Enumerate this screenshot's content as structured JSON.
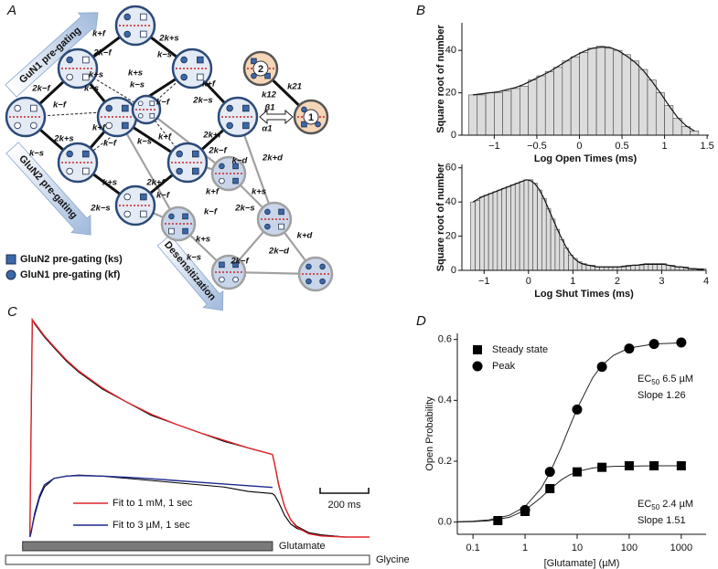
{
  "panel_labels": [
    "A",
    "B",
    "C",
    "D"
  ],
  "diagram": {
    "arrows": [
      "GuN1 pre-gating",
      "GluN2 pre-gating",
      "Desensitization"
    ],
    "legend": [
      "GluN2 pre-gating (ks)",
      "GluN1 pre-gating (kf)"
    ],
    "states": [
      "2",
      "1"
    ],
    "rates": [
      "k+f",
      "2k−f",
      "2k+s",
      "k−s",
      "2k−f",
      "k−f",
      "k+s",
      "k−s",
      "k+s",
      "k−s",
      "2k+s",
      "k−s",
      "k+f",
      "k−f",
      "k+f",
      "2k−s",
      "k−f",
      "k+f",
      "k−s",
      "2k+f",
      "2k−f",
      "k+s",
      "2k−s",
      "2k+f",
      "k−f",
      "k−d",
      "2k+d",
      "k+f",
      "k+s",
      "2k−s",
      "k−f",
      "k+s",
      "k−s",
      "2k−d",
      "k+d",
      "2k−f",
      "k12",
      "β1",
      "α1",
      "k21"
    ]
  },
  "chart_data": [
    {
      "type": "histogram",
      "xlabel": "Log Open Times (ms)",
      "ylabel": "Square root of number",
      "color": "#dcdcdc",
      "bins": [
        -1.3,
        -1.2,
        -1.1,
        -1.0,
        -0.9,
        -0.8,
        -0.7,
        -0.6,
        -0.5,
        -0.4,
        -0.3,
        -0.2,
        -0.1,
        0.0,
        0.1,
        0.2,
        0.3,
        0.4,
        0.5,
        0.6,
        0.7,
        0.8,
        0.9,
        1.0,
        1.1,
        1.2,
        1.3,
        1.4
      ],
      "values": [
        19,
        19,
        20,
        20,
        21,
        22,
        23,
        26,
        28,
        30,
        32,
        35,
        37,
        39,
        41,
        42,
        41,
        40,
        38,
        35,
        31,
        26,
        20,
        14,
        8,
        4,
        2
      ],
      "fit": [
        19,
        19.5,
        20,
        20.5,
        21.5,
        22.5,
        24,
        26,
        28,
        30,
        32.5,
        35,
        37.5,
        39.5,
        41,
        41.5,
        41.5,
        40,
        37.5,
        34.5,
        30.5,
        25.5,
        20,
        14,
        8.5,
        4.5,
        2
      ],
      "xlim": [
        -1.38,
        1.52
      ],
      "ylim": [
        0,
        53
      ],
      "xticks": [
        {
          "value": -1,
          "label": "−1"
        },
        {
          "value": -0.5,
          "label": "−0.5"
        },
        0,
        0.5,
        1,
        1.5
      ],
      "yticks": [
        0,
        20,
        40
      ]
    },
    {
      "type": "histogram",
      "xlabel": "Log Shut Times (ms)",
      "ylabel": "Square root of number",
      "color": "#dcdcdc",
      "bins": [
        -1.3,
        -1.2,
        -1.1,
        -1.0,
        -0.9,
        -0.8,
        -0.7,
        -0.6,
        -0.5,
        -0.4,
        -0.3,
        -0.2,
        -0.1,
        0.0,
        0.1,
        0.2,
        0.3,
        0.4,
        0.5,
        0.6,
        0.7,
        0.8,
        0.9,
        1.0,
        1.1,
        1.2,
        1.3,
        1.4,
        1.5,
        1.6,
        1.7,
        1.8,
        1.9,
        2.0,
        2.1,
        2.2,
        2.3,
        2.4,
        2.5,
        2.6,
        2.7,
        2.8,
        2.9,
        3.0,
        3.1,
        3.2,
        3.3,
        3.4,
        3.5,
        3.6,
        3.7,
        3.8,
        3.9,
        4.0
      ],
      "values": [
        40,
        41,
        43,
        44,
        45,
        46,
        47,
        48,
        49,
        50,
        51,
        52,
        53,
        53,
        51,
        47,
        42,
        36,
        30,
        24,
        18,
        13,
        9,
        7,
        5,
        4,
        3,
        3,
        2,
        2,
        2,
        2,
        2,
        2,
        2,
        3,
        3,
        3,
        3,
        4,
        4,
        4,
        4,
        4,
        3,
        3,
        2,
        2,
        2,
        1,
        1,
        1,
        1
      ],
      "fit": [
        40,
        41.5,
        43,
        44,
        45,
        46,
        47,
        48,
        49,
        50,
        51,
        52,
        53,
        52.5,
        50.5,
        47,
        42,
        36,
        30,
        24,
        18.5,
        13.5,
        9.5,
        6.5,
        4.5,
        3.5,
        3,
        2.5,
        2,
        2,
        2,
        2,
        2,
        2,
        2.5,
        2.5,
        3,
        3,
        3.5,
        3.5,
        3.5,
        3.5,
        3.5,
        3.5,
        3,
        2.5,
        2,
        2,
        1.5,
        1,
        1,
        0.5,
        0.5
      ],
      "xlim": [
        -1.5,
        4
      ],
      "ylim": [
        0,
        62
      ],
      "xticks": [
        {
          "value": -1,
          "label": "−1"
        },
        0,
        1,
        2,
        3,
        4
      ],
      "yticks": [
        0,
        20,
        40,
        60
      ]
    },
    {
      "type": "line",
      "x": [
        0,
        5,
        10,
        20,
        40,
        60,
        100,
        150,
        200,
        300,
        400,
        500,
        600,
        700,
        800,
        900,
        1000,
        1010,
        1025,
        1050,
        1075,
        1100,
        1150,
        1200,
        1300,
        1400
      ],
      "xlim": [
        -10,
        1400
      ],
      "ylim": [
        0,
        1
      ],
      "series": [
        {
          "color": "#000000",
          "values": [
            0,
            0.5,
            1,
            0.98,
            0.95,
            0.92,
            0.87,
            0.81,
            0.76,
            0.68,
            0.62,
            0.56,
            0.52,
            0.48,
            0.44,
            0.41,
            0.38,
            0.33,
            0.24,
            0.14,
            0.08,
            0.05,
            0.02,
            0.01,
            0,
            0
          ]
        },
        {
          "name": "Fit  to 1 mM, 1 sec",
          "color": "#e0252b",
          "values": [
            0,
            0.5,
            1,
            0.985,
            0.955,
            0.925,
            0.875,
            0.815,
            0.765,
            0.685,
            0.62,
            0.565,
            0.52,
            0.48,
            0.445,
            0.41,
            0.38,
            0.33,
            0.245,
            0.14,
            0.08,
            0.045,
            0.015,
            0.005,
            0,
            0
          ]
        },
        {
          "color": "#000000",
          "values": [
            0,
            0.02,
            0.05,
            0.1,
            0.18,
            0.23,
            0.27,
            0.28,
            0.285,
            0.28,
            0.27,
            0.26,
            0.25,
            0.24,
            0.23,
            0.21,
            0.2,
            0.19,
            0.16,
            0.1,
            0.06,
            0.04,
            0.02,
            0.01,
            0,
            0
          ]
        },
        {
          "name": "Fit to 3 µM, 1 sec",
          "color": "#1c2a8c",
          "values": [
            0,
            0.02,
            0.05,
            0.11,
            0.19,
            0.24,
            0.27,
            0.28,
            0.283,
            0.28,
            0.275,
            0.268,
            0.26,
            0.252,
            0.244,
            0.236,
            0.228,
            null,
            null,
            null,
            null,
            null,
            null,
            null,
            null,
            null
          ]
        }
      ],
      "scale_bar": {
        "value": 200,
        "label": "200 ms"
      },
      "application_bars": [
        {
          "label": "Glutamate",
          "start": -30,
          "end": 1000,
          "color": "#7a7a7a"
        },
        {
          "label": "Glycine",
          "start": -100,
          "end": 1400,
          "color": "#ffffff"
        }
      ]
    },
    {
      "type": "scatter",
      "xlabel": "[Glutamate] (µM)",
      "ylabel": "Open Probability",
      "log_x": true,
      "xlim": [
        0.05,
        3000
      ],
      "ylim": [
        -0.04,
        0.62
      ],
      "xticks": [
        0.1,
        1,
        10,
        100,
        1000
      ],
      "yticks": [
        {
          "value": 0,
          "label": "0.0"
        },
        {
          "value": 0.2,
          "label": "0.2"
        },
        {
          "value": 0.4,
          "label": "0.4"
        },
        {
          "value": 0.6,
          "label": "0.6"
        }
      ],
      "series": [
        {
          "name": "Steady state",
          "marker": "square",
          "color": "#000000",
          "x": [
            0.3,
            1,
            3,
            10,
            30,
            100,
            300,
            1000
          ],
          "values": [
            0.005,
            0.035,
            0.11,
            0.165,
            0.18,
            0.185,
            0.185,
            0.185
          ],
          "fit_x": [
            0.05,
            0.1,
            0.2,
            0.5,
            1,
            2,
            3,
            5,
            7,
            10,
            20,
            30,
            50,
            100,
            300,
            1000
          ],
          "fit_values": [
            0.0005,
            0.0015,
            0.0042,
            0.0158,
            0.039,
            0.08,
            0.108,
            0.139,
            0.154,
            0.166,
            0.178,
            0.181,
            0.183,
            0.184,
            0.185,
            0.185
          ]
        },
        {
          "name": "Peak",
          "marker": "circle",
          "color": "#000000",
          "x": [
            1,
            3,
            10,
            30,
            100,
            300,
            1000
          ],
          "values": [
            0.04,
            0.165,
            0.37,
            0.51,
            0.57,
            0.585,
            0.59
          ],
          "fit_x": [
            0.05,
            0.1,
            0.2,
            0.5,
            1,
            2,
            3,
            5,
            7,
            10,
            20,
            30,
            50,
            100,
            300,
            1000
          ],
          "fit_values": [
            0.0013,
            0.0031,
            0.0073,
            0.0224,
            0.051,
            0.109,
            0.162,
            0.247,
            0.309,
            0.373,
            0.475,
            0.515,
            0.548,
            0.572,
            0.585,
            0.589
          ]
        }
      ],
      "annotations": [
        {
          "text": "EC",
          "sub": "50",
          "rest": " 6.5 µM"
        },
        {
          "text": "Slope 1.26"
        },
        {
          "text": "EC",
          "sub": "50",
          "rest": " 2.4 µM"
        },
        {
          "text": "Slope 1.51"
        }
      ]
    }
  ]
}
